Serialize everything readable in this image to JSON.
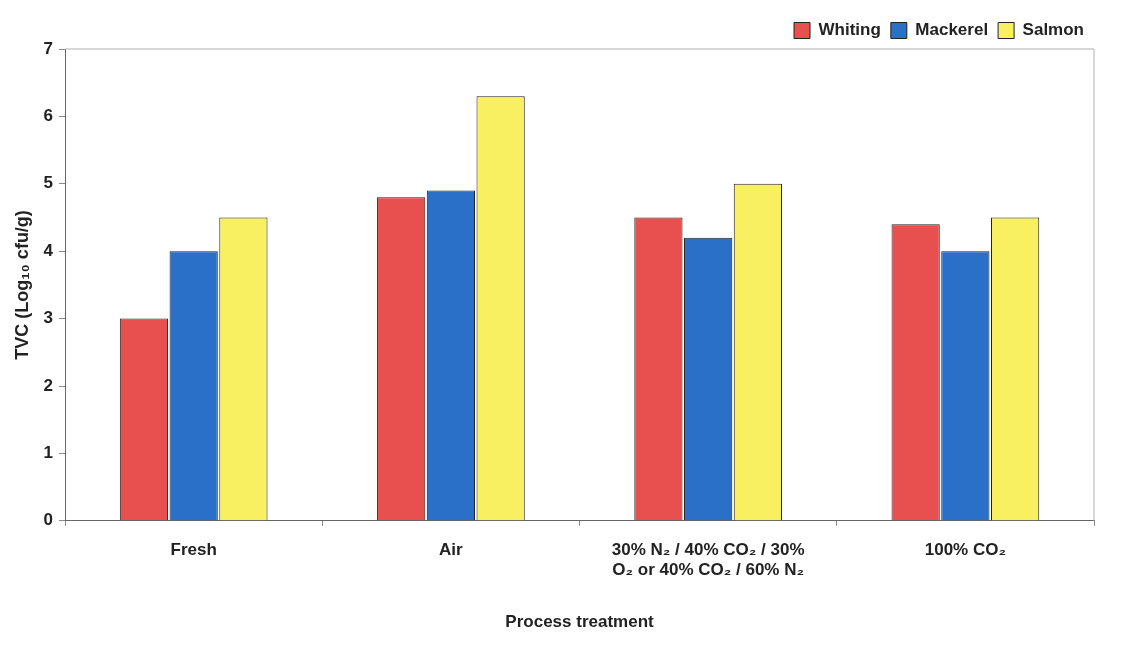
{
  "chart_data": {
    "type": "bar",
    "xlabel": "Process treatment",
    "ylabel": "TVC (Log₁₀ cfu/g)",
    "categories": [
      "Fresh",
      "Air",
      "30% N₂ / 40% CO₂ / 30% O₂ or 40% CO₂ / 60% N₂",
      "100% CO₂"
    ],
    "series": [
      {
        "name": "Whiting",
        "color": "#e85050",
        "values": [
          3.0,
          4.8,
          4.5,
          4.4
        ]
      },
      {
        "name": "Mackerel",
        "color": "#2a70c8",
        "values": [
          4.0,
          4.9,
          4.2,
          4.0
        ]
      },
      {
        "name": "Salmon",
        "color": "#f8f060",
        "values": [
          4.5,
          6.3,
          5.0,
          4.5
        ]
      }
    ],
    "ylim": [
      0,
      7
    ],
    "yticks": [
      0,
      1,
      2,
      3,
      4,
      5,
      6,
      7
    ],
    "grid": false,
    "legend": "top right"
  }
}
